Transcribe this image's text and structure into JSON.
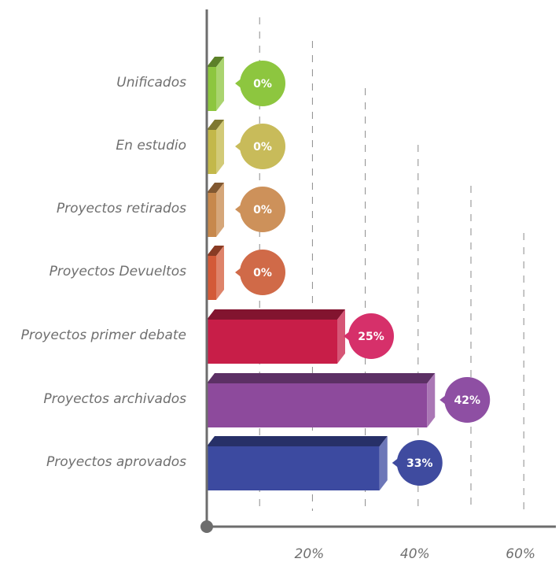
{
  "chart_data": {
    "type": "bar",
    "orientation": "horizontal",
    "categories": [
      "Unificados",
      "En estudio",
      "Proyectos retirados",
      "Proyectos Devueltos",
      "Proyectos primer debate",
      "Proyectos archivados",
      "Proyectos aprovados"
    ],
    "values": [
      0,
      0,
      0,
      0,
      25,
      42,
      33
    ],
    "value_labels": [
      "0%",
      "0%",
      "0%",
      "0%",
      "25%",
      "42%",
      "33%"
    ],
    "colors": [
      "#8dc63f",
      "#c3b84a",
      "#c7884c",
      "#d35a38",
      "#c81e48",
      "#8d4a9c",
      "#3c4aa0"
    ],
    "bubble_colors": [
      "#8dc63f",
      "#c8bb5a",
      "#cd915a",
      "#d06a48",
      "#d6306a",
      "#8e4fa3",
      "#3f4b9f"
    ],
    "x_ticks": [
      "20%",
      "40%",
      "60%"
    ],
    "x_tick_values": [
      20,
      40,
      60
    ],
    "xlim": [
      0,
      66
    ],
    "grid": "dashed vertical",
    "legend": "none"
  }
}
